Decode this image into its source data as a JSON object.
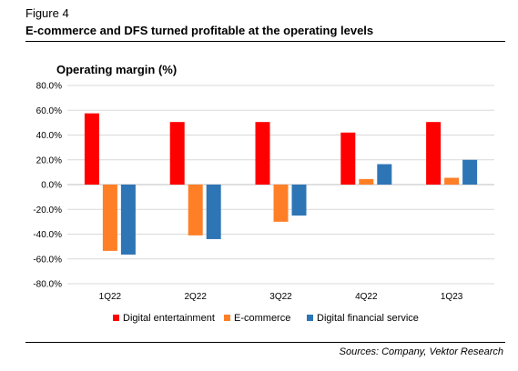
{
  "header": {
    "figure_label": "Figure 4",
    "title": "E-commerce and DFS turned profitable at the operating levels"
  },
  "footer": {
    "source": "Sources: Company, Vektor Research"
  },
  "chart_data": {
    "type": "bar",
    "title": "",
    "ylabel": "Operating margin (%)",
    "xlabel": "",
    "categories": [
      "1Q22",
      "2Q22",
      "3Q22",
      "4Q22",
      "1Q23"
    ],
    "series": [
      {
        "name": "Digital entertainment",
        "color": "#ff0000",
        "values": [
          57.5,
          50.5,
          50.5,
          42.0,
          50.5
        ]
      },
      {
        "name": "E-commerce",
        "color": "#ff7f27",
        "values": [
          -53.5,
          -41.0,
          -30.0,
          4.5,
          5.5
        ]
      },
      {
        "name": "Digital financial service",
        "color": "#2e75b6",
        "values": [
          -56.5,
          -44.0,
          -25.0,
          16.5,
          20.0
        ]
      }
    ],
    "ylim": [
      -80,
      80
    ],
    "yticks": [
      "80.0%",
      "60.0%",
      "40.0%",
      "20.0%",
      "0.0%",
      "-20.0%",
      "-40.0%",
      "-60.0%",
      "-80.0%"
    ],
    "ytick_values": [
      80,
      60,
      40,
      20,
      0,
      -20,
      -40,
      -60,
      -80
    ],
    "grid": true,
    "legend_position": "bottom"
  }
}
